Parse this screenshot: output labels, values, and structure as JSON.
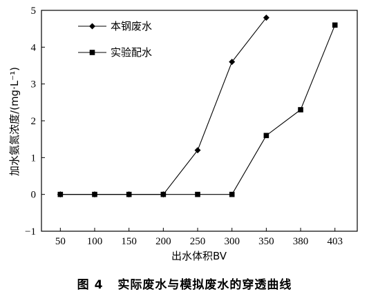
{
  "chart_data": {
    "type": "line",
    "categories": [
      "50",
      "100",
      "150",
      "200",
      "250",
      "300",
      "350",
      "380",
      "403"
    ],
    "xlabel": "出水体积BV",
    "ylabel": "加水氨氮浓度/(mg·L⁻¹)",
    "ylim": [
      -1,
      5
    ],
    "yticks": [
      "−1",
      "0",
      "1",
      "2",
      "3",
      "4",
      "5"
    ],
    "grid": false,
    "legend_position": "top-left",
    "series": [
      {
        "name": "本钢废水",
        "marker": "diamond",
        "points": [
          {
            "x": "50",
            "y": 0
          },
          {
            "x": "100",
            "y": 0
          },
          {
            "x": "150",
            "y": 0
          },
          {
            "x": "200",
            "y": 0
          },
          {
            "x": "250",
            "y": 1.2
          },
          {
            "x": "300",
            "y": 3.6
          },
          {
            "x": "350",
            "y": 4.8
          }
        ]
      },
      {
        "name": "实验配水",
        "marker": "square",
        "points": [
          {
            "x": "50",
            "y": 0
          },
          {
            "x": "100",
            "y": 0
          },
          {
            "x": "150",
            "y": 0
          },
          {
            "x": "200",
            "y": 0
          },
          {
            "x": "250",
            "y": 0
          },
          {
            "x": "300",
            "y": 0
          },
          {
            "x": "350",
            "y": 1.6
          },
          {
            "x": "380",
            "y": 2.3
          },
          {
            "x": "403",
            "y": 4.6
          }
        ]
      }
    ]
  },
  "caption": {
    "figure_number": "图 4",
    "title": "实际废水与模拟废水的穿透曲线"
  }
}
